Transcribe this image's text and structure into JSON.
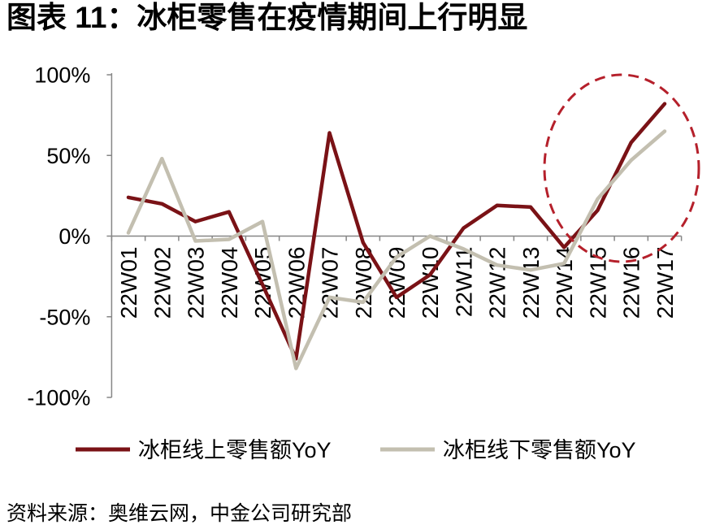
{
  "source": "资料来源：奥维云网，中金公司研究部",
  "colors": {
    "axis": "#868686",
    "highlight": "#b5202b",
    "text": "#000000",
    "background": "#ffffff"
  },
  "chart_data": {
    "type": "line",
    "title": "图表 11：冰柜零售在疫情期间上行明显",
    "categories": [
      "22W01",
      "22W02",
      "22W03",
      "22W04",
      "22W05",
      "22W06",
      "22W07",
      "22W08",
      "22W09",
      "22W10",
      "22W11",
      "22W12",
      "22W13",
      "22W14",
      "22W15",
      "22W16",
      "22W17"
    ],
    "series": [
      {
        "name": "冰柜线上零售额YoY",
        "color": "#7a1216",
        "values": [
          24,
          20,
          9,
          15,
          -30,
          -76,
          64,
          -4,
          -38,
          -24,
          5,
          19,
          18,
          -7,
          16,
          58,
          82
        ]
      },
      {
        "name": "冰柜线下零售额YoY",
        "color": "#c3bfb0",
        "values": [
          2,
          48,
          -3,
          -2,
          9,
          -82,
          -38,
          -41,
          -13,
          0,
          -8,
          -18,
          -21,
          -17,
          23,
          47,
          65
        ]
      }
    ],
    "ylim": [
      -100,
      100
    ],
    "yticks": [
      100,
      50,
      0,
      -50,
      -100
    ],
    "ytick_labels": [
      "100%",
      "50%",
      "0%",
      "-50%",
      "-100%"
    ],
    "grid": false,
    "legend": "bottom"
  }
}
